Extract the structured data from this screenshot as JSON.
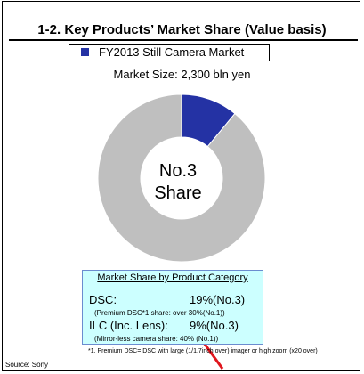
{
  "slide": {
    "title": "1-2. Key Products’ Market Share  (Value basis)",
    "legend_label": "FY2013 Still Camera Market",
    "subtitle": "Market Size: 2,300 bln yen",
    "center_line1": "No.3",
    "center_line2": "Share",
    "footnote": "*1. Premium DSC= DSC with large (1/1.7inch over) imager or high zoom (x20 over)",
    "source": "Source: Sony"
  },
  "share_box": {
    "title": "Market Share by Product Category",
    "rows": [
      {
        "label": "DSC:",
        "value": "19%(No.3)",
        "note": "(Premium DSC*1 share: over 30%(No.1))"
      },
      {
        "label": "ILC (Inc. Lens):",
        "value": "9%(No.3)",
        "note": "(Mirror-less camera share: 40% (No.1))"
      }
    ]
  },
  "colors": {
    "highlight": "#2432a4",
    "remainder": "#bfbfbf",
    "box_fill": "#ccffff",
    "arrow": "#e0161d"
  },
  "chart_data": {
    "type": "pie",
    "variant": "donut",
    "title": "FY2013 Still Camera Market",
    "subtitle": "Market Size: 2,300 bln yen",
    "slices": [
      {
        "value": 11,
        "color": "#2432a4"
      },
      {
        "value": 89,
        "color": "#bfbfbf"
      }
    ],
    "start_angle_deg": 0,
    "direction": "clockwise",
    "legend": [
      "FY2013 Still Camera Market"
    ]
  }
}
